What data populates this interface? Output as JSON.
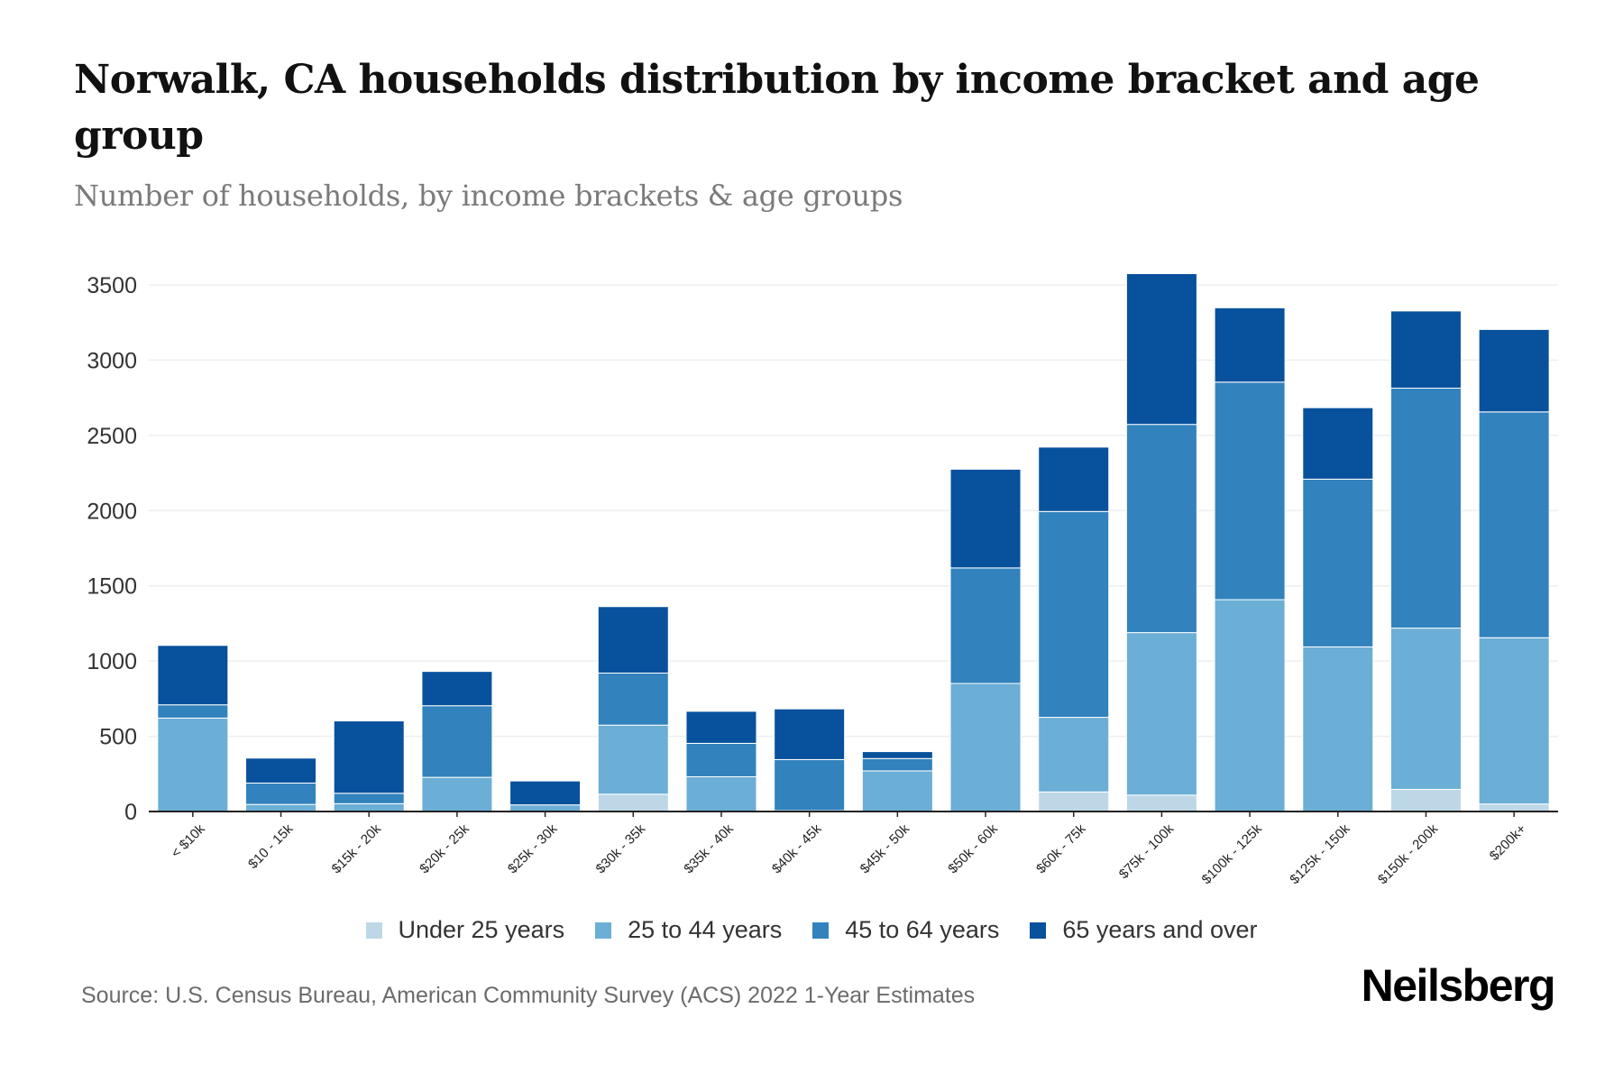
{
  "title": "Norwalk, CA households distribution by income bracket and age group",
  "subtitle": "Number of households, by income brackets & age groups",
  "source": "Source: U.S. Census Bureau, American Community Survey (ACS) 2022 1-Year Estimates",
  "logo": "Neilsberg",
  "chart_data": {
    "type": "bar",
    "stacked": true,
    "title": "Norwalk, CA households distribution by income bracket and age group",
    "subtitle": "Number of households, by income brackets & age groups",
    "xlabel": "",
    "ylabel": "",
    "ylim": [
      0,
      3500
    ],
    "yticks": [
      0,
      500,
      1000,
      1500,
      2000,
      2500,
      3000,
      3500
    ],
    "grid": true,
    "legend_position": "bottom",
    "categories": [
      "< $10k",
      "$10 - 15k",
      "$15k - 20k",
      "$20k - 25k",
      "$25k - 30k",
      "$30k - 35k",
      "$35k - 40k",
      "$40k - 45k",
      "$45k - 50k",
      "$50k - 60k",
      "$60k - 75k",
      "$75k - 100k",
      "$100k - 125k",
      "$125k - 150k",
      "$150k - 200k",
      "$200k+"
    ],
    "series": [
      {
        "name": "Under 25 years",
        "color": "#bdd7e7",
        "values": [
          0,
          0,
          0,
          0,
          0,
          115,
          0,
          0,
          0,
          0,
          130,
          109,
          0,
          0,
          147,
          50
        ]
      },
      {
        "name": "25 to 44 years",
        "color": "#6baed6",
        "values": [
          621,
          47,
          52,
          227,
          44,
          459,
          231,
          6,
          270,
          851,
          496,
          1080,
          1408,
          1094,
          1072,
          1105
        ]
      },
      {
        "name": "45 to 64 years",
        "color": "#3182bd",
        "values": [
          88,
          142,
          69,
          476,
          0,
          346,
          222,
          339,
          82,
          768,
          1368,
          1384,
          1446,
          1115,
          1595,
          1501
        ]
      },
      {
        "name": "65 years and over",
        "color": "#08519c",
        "values": [
          395,
          166,
          481,
          228,
          159,
          442,
          213,
          337,
          46,
          656,
          428,
          1002,
          494,
          475,
          513,
          548
        ]
      }
    ]
  }
}
